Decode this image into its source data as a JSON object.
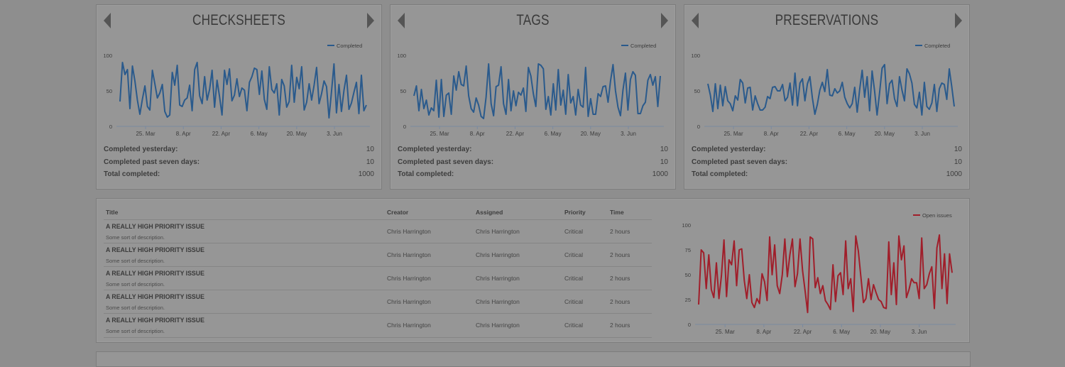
{
  "cards": [
    {
      "title": "CHECKSHEETS",
      "legend": "Completed",
      "stats": [
        {
          "label": "Completed yesterday:",
          "value": "10"
        },
        {
          "label": "Completed past seven days:",
          "value": "10"
        },
        {
          "label": "Total completed:",
          "value": "1000"
        }
      ]
    },
    {
      "title": "TAGS",
      "legend": "Completed",
      "stats": [
        {
          "label": "Completed yesterday:",
          "value": "10"
        },
        {
          "label": "Completed past seven days:",
          "value": "10"
        },
        {
          "label": "Total completed:",
          "value": "1000"
        }
      ]
    },
    {
      "title": "PRESERVATIONS",
      "legend": "Completed",
      "stats": [
        {
          "label": "Completed yesterday:",
          "value": "10"
        },
        {
          "label": "Completed past seven days:",
          "value": "10"
        },
        {
          "label": "Total completed:",
          "value": "1000"
        }
      ]
    }
  ],
  "issues": {
    "headers": {
      "title": "Title",
      "creator": "Creator",
      "assigned": "Assigned",
      "priority": "Priority",
      "time": "Time"
    },
    "rows": [
      {
        "title": "A REALLY HIGH PRIORITY ISSUE",
        "description": "Some sort of description.",
        "creator": "Chris Harrington",
        "assigned": "Chris Harrington",
        "priority": "Critical",
        "time": "2 hours"
      },
      {
        "title": "A REALLY HIGH PRIORITY ISSUE",
        "description": "Some sort of description.",
        "creator": "Chris Harrington",
        "assigned": "Chris Harrington",
        "priority": "Critical",
        "time": "2 hours"
      },
      {
        "title": "A REALLY HIGH PRIORITY ISSUE",
        "description": "Some sort of description.",
        "creator": "Chris Harrington",
        "assigned": "Chris Harrington",
        "priority": "Critical",
        "time": "2 hours"
      },
      {
        "title": "A REALLY HIGH PRIORITY ISSUE",
        "description": "Some sort of description.",
        "creator": "Chris Harrington",
        "assigned": "Chris Harrington",
        "priority": "Critical",
        "time": "2 hours"
      },
      {
        "title": "A REALLY HIGH PRIORITY ISSUE",
        "description": "Some sort of description.",
        "creator": "Chris Harrington",
        "assigned": "Chris Harrington",
        "priority": "Critical",
        "time": "2 hours"
      }
    ]
  },
  "colors": {
    "completed": "#2a5a8c",
    "open_issues": "#a01e2a",
    "background": "#8e8e8e",
    "panel": "#969696"
  },
  "chart_data": [
    {
      "type": "line",
      "title": "CHECKSHEETS",
      "ylim": [
        0,
        100
      ],
      "yticks": [
        0,
        50,
        100
      ],
      "xticks": [
        "25. Mar",
        "8. Apr",
        "22. Apr",
        "6. May",
        "20. May",
        "3. Jun"
      ],
      "legend_position": "top-right",
      "grid": false,
      "series": [
        {
          "name": "Completed",
          "color": "#2a5a8c",
          "values": [
            35,
            90,
            73,
            80,
            25,
            85,
            64,
            37,
            17,
            38,
            57,
            28,
            23,
            79,
            60,
            40,
            47,
            59,
            21,
            13,
            16,
            76,
            58,
            86,
            30,
            28,
            37,
            40,
            58,
            22,
            80,
            90,
            43,
            32,
            70,
            37,
            52,
            79,
            27,
            65,
            42,
            16,
            79,
            59,
            81,
            36,
            44,
            67,
            42,
            54,
            51,
            22,
            62,
            70,
            82,
            80,
            45,
            78,
            38,
            24,
            84,
            52,
            47,
            60,
            16,
            66,
            57,
            27,
            35,
            86,
            34,
            69,
            53,
            84,
            23,
            34,
            60,
            37,
            58,
            83,
            32,
            46,
            64,
            56,
            12,
            49,
            88,
            19,
            59,
            21,
            51,
            72,
            24,
            33,
            48,
            62,
            18,
            72,
            22,
            30
          ]
        }
      ]
    },
    {
      "type": "line",
      "title": "TAGS",
      "ylim": [
        0,
        100
      ],
      "yticks": [
        0,
        50,
        100
      ],
      "xticks": [
        "25. Mar",
        "8. Apr",
        "22. Apr",
        "6. May",
        "20. May",
        "3. Jun"
      ],
      "legend_position": "top-right",
      "grid": false,
      "series": [
        {
          "name": "Completed",
          "color": "#2a5a8c",
          "values": [
            43,
            57,
            22,
            52,
            25,
            37,
            16,
            26,
            22,
            65,
            13,
            66,
            14,
            44,
            47,
            17,
            71,
            51,
            77,
            59,
            57,
            85,
            43,
            25,
            20,
            40,
            30,
            14,
            11,
            41,
            88,
            32,
            15,
            56,
            58,
            84,
            32,
            17,
            66,
            22,
            50,
            29,
            48,
            44,
            54,
            21,
            83,
            71,
            46,
            28,
            88,
            86,
            81,
            24,
            42,
            16,
            60,
            23,
            80,
            30,
            51,
            17,
            73,
            33,
            42,
            16,
            52,
            30,
            27,
            83,
            14,
            39,
            17,
            17,
            46,
            42,
            56,
            57,
            34,
            64,
            87,
            50,
            27,
            15,
            51,
            75,
            23,
            66,
            77,
            72,
            18,
            18,
            29,
            34,
            65,
            73,
            58,
            70,
            28,
            71
          ]
        }
      ]
    },
    {
      "type": "line",
      "title": "PRESERVATIONS",
      "ylim": [
        0,
        100
      ],
      "yticks": [
        0,
        50,
        100
      ],
      "xticks": [
        "25. Mar",
        "8. Apr",
        "22. Apr",
        "6. May",
        "20. May",
        "3. Jun"
      ],
      "legend_position": "top-right",
      "grid": false,
      "series": [
        {
          "name": "Completed",
          "color": "#2a5a8c",
          "values": [
            60,
            44,
            21,
            60,
            25,
            58,
            29,
            56,
            36,
            32,
            22,
            43,
            37,
            66,
            61,
            33,
            54,
            55,
            23,
            43,
            32,
            23,
            23,
            27,
            42,
            39,
            55,
            56,
            50,
            50,
            59,
            36,
            41,
            61,
            30,
            75,
            29,
            61,
            67,
            36,
            60,
            70,
            40,
            17,
            31,
            51,
            62,
            49,
            80,
            44,
            43,
            53,
            47,
            50,
            62,
            41,
            32,
            26,
            32,
            55,
            20,
            52,
            79,
            41,
            70,
            22,
            78,
            50,
            16,
            47,
            82,
            87,
            32,
            60,
            65,
            39,
            28,
            70,
            51,
            36,
            81,
            74,
            61,
            31,
            26,
            48,
            16,
            62,
            28,
            24,
            33,
            59,
            21,
            53,
            61,
            59,
            38,
            81,
            56,
            28
          ]
        }
      ]
    },
    {
      "type": "line",
      "title": "",
      "ylim": [
        0,
        100
      ],
      "yticks": [
        0,
        25,
        50,
        75,
        100
      ],
      "xticks": [
        "25. Mar",
        "8. Apr",
        "22. Apr",
        "6. May",
        "20. May",
        "3. Jun"
      ],
      "legend_position": "top-right",
      "grid": false,
      "series": [
        {
          "name": "Open issues",
          "color": "#a01e2a",
          "values": [
            20,
            75,
            72,
            36,
            70,
            35,
            27,
            62,
            26,
            49,
            85,
            28,
            65,
            60,
            84,
            39,
            75,
            76,
            44,
            26,
            50,
            22,
            17,
            26,
            21,
            51,
            43,
            24,
            88,
            50,
            80,
            39,
            31,
            50,
            86,
            48,
            70,
            86,
            38,
            51,
            86,
            54,
            34,
            12,
            88,
            86,
            37,
            47,
            31,
            39,
            24,
            20,
            15,
            60,
            23,
            49,
            52,
            30,
            84,
            36,
            46,
            13,
            89,
            74,
            48,
            22,
            26,
            46,
            25,
            40,
            32,
            25,
            23,
            17,
            16,
            83,
            30,
            62,
            20,
            89,
            65,
            79,
            27,
            35,
            46,
            42,
            42,
            26,
            87,
            36,
            40,
            51,
            58,
            16,
            77,
            90,
            36,
            71,
            21,
            71,
            52
          ]
        }
      ]
    }
  ]
}
